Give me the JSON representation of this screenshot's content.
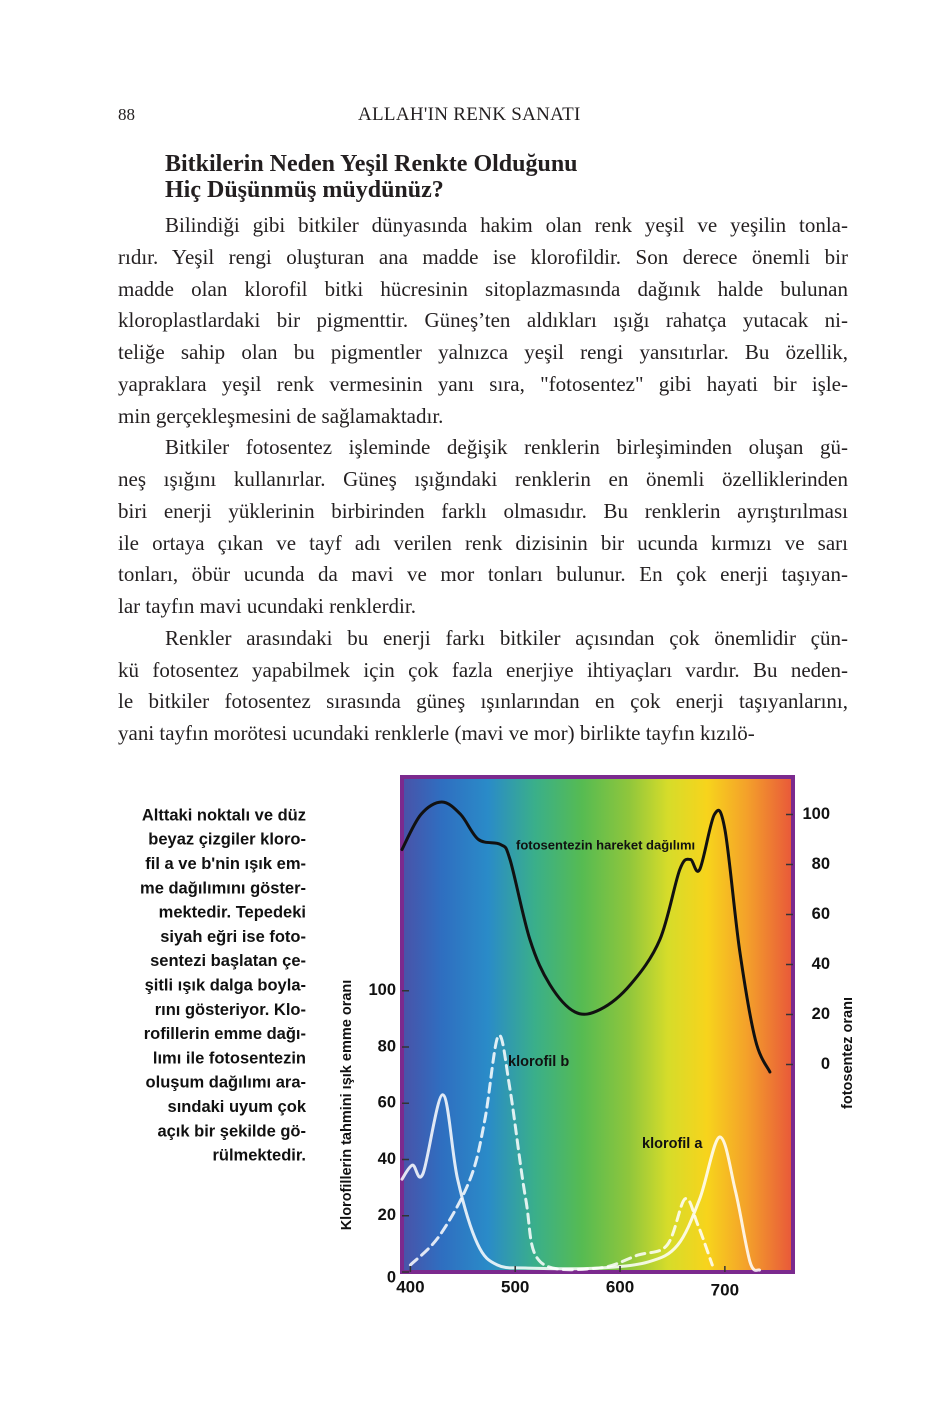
{
  "header": {
    "page_number": "88",
    "running_title": "ALLAH'IN RENK SANATI"
  },
  "heading": {
    "lines": [
      "Bitkilerin Neden Yeşil Renkte Olduğunu",
      "Hiç Düşünmüş müydünüz?"
    ]
  },
  "paragraphs": [
    {
      "lines": [
        "Bilindiği gibi bitkiler dünyasında hakim olan renk yeşil ve yeşilin tonla-",
        "rıdır. Yeşil rengi oluşturan ana madde ise klorofildir. Son derece önemli bir",
        "madde olan klorofil bitki hücresinin sitoplazmasında dağınık halde bulunan",
        "kloroplastlardaki bir pigmenttir. Güneş’ten aldıkları ışığı rahatça yutacak ni-",
        "teliğe sahip olan bu pigmentler yalnızca yeşil rengi yansıtırlar. Bu özellik,",
        "yapraklara yeşil renk vermesinin yanı sıra, \"fotosentez\" gibi hayati bir işle-",
        "min gerçekleşmesini de sağlamaktadır."
      ]
    },
    {
      "lines": [
        "Bitkiler fotosentez işleminde değişik renklerin birleşiminden oluşan gü-",
        "neş ışığını kullanırlar. Güneş ışığındaki renklerin en önemli özelliklerinden",
        "biri enerji yüklerinin birbirinden farklı olmasıdır. Bu renklerin ayrıştırılması",
        "ile ortaya çıkan ve tayf adı verilen renk dizisinin bir ucunda kırmızı ve sarı",
        "tonları, öbür ucunda da mavi ve mor tonları bulunur. En çok enerji taşıyan-",
        "lar tayfın mavi ucundaki renklerdir."
      ]
    },
    {
      "lines": [
        "Renkler arasındaki bu enerji farkı bitkiler açısından çok önemlidir çün-",
        "kü fotosentez yapabilmek için çok fazla enerjiye ihtiyaçları vardır. Bu neden-",
        "le bitkiler fotosentez sırasında güneş ışınlarından en çok enerji taşıyanlarını,",
        "yani tayfın morötesi ucundaki renklerle (mavi ve mor) birlikte tayfın kızılö-"
      ]
    }
  ],
  "caption": {
    "lines": [
      "Alttaki noktalı ve düz",
      "beyaz çizgiler kloro-",
      "fil a ve b'nin ışık em-",
      "me dağılımını göster-",
      "mektedir. Tepedeki",
      "siyah eğri ise foto-",
      "sentezi başlatan çe-",
      "şitli ışık dalga boyla-",
      "rını gösteriyor. Klo-",
      "rofillerin emme dağı-",
      "lımı ile fotosentezin",
      "oluşum dağılımı ara-",
      "sındaki uyum çok",
      "açık bir şekilde gö-",
      "rülmektedir."
    ]
  },
  "chart_data": {
    "type": "line",
    "ylabel": "Klorofillerin tahmini ışık emme oranı",
    "y2label": "fotosentez oranı",
    "xlim": [
      392,
      765
    ],
    "xticks": [
      400,
      500,
      600,
      700
    ],
    "ylim": [
      0,
      176
    ],
    "yticks": [
      0,
      20,
      40,
      60,
      80,
      100
    ],
    "y2lim": [
      -83,
      115
    ],
    "y2ticks": [
      0,
      20,
      40,
      60,
      80,
      100
    ],
    "series": [
      {
        "name": "fotosentezin hareket dağılımı",
        "color": "#111111",
        "axis": "y2",
        "x": [
          392,
          410,
          430,
          448,
          465,
          486,
          495,
          514,
          533,
          557,
          581,
          610,
          638,
          657,
          667,
          676,
          690,
          700,
          714,
          729,
          743
        ],
        "values": [
          86,
          100,
          105,
          100,
          90,
          88,
          82,
          50,
          32,
          21,
          22,
          32,
          50,
          78,
          82,
          78,
          100,
          94,
          46,
          10,
          -3
        ]
      },
      {
        "name": "klorofil b",
        "color": "#ffffff",
        "dashed": true,
        "x": [
          400,
          428,
          457,
          471,
          484,
          495,
          510,
          524,
          579,
          617,
          645,
          662,
          674,
          688
        ],
        "values": [
          2.5,
          13,
          33,
          54,
          84,
          65,
          26,
          3.6,
          1.4,
          6,
          9.6,
          26,
          17,
          2.5
        ]
      },
      {
        "name": "klorofil a",
        "color": "#ffffff",
        "x": [
          392,
          402,
          412,
          431,
          445,
          464,
          483,
          512,
          579,
          627,
          655,
          676,
          695,
          710,
          724,
          733
        ],
        "values": [
          33,
          38,
          35,
          63,
          33,
          10,
          2.5,
          1.4,
          1.4,
          3.6,
          9.6,
          26,
          48,
          29,
          3.6,
          0.7
        ]
      }
    ]
  }
}
